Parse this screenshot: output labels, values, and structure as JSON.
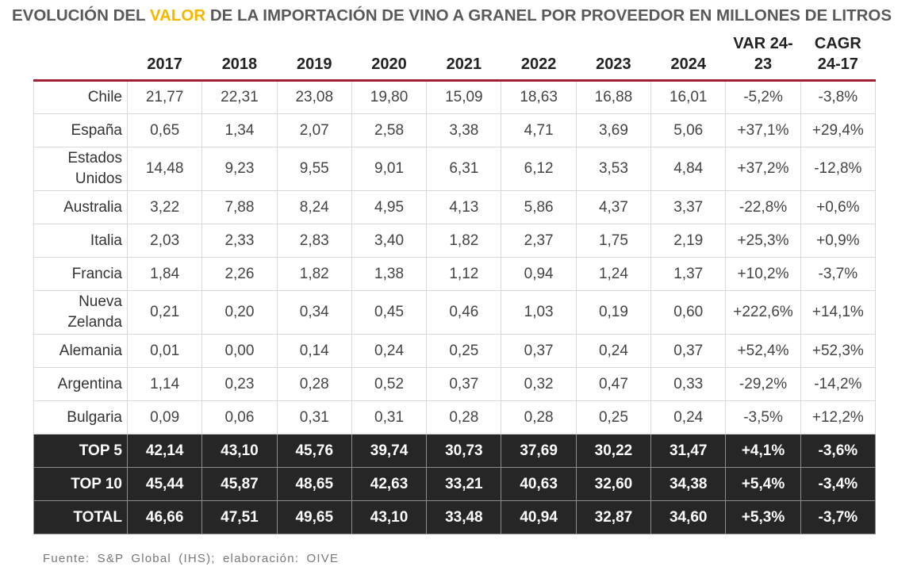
{
  "header": {
    "title_start": "EVOLUCIÓN DEL",
    "title_highlight": "VALOR",
    "title_end": "DE LA IMPORTACIÓN DE VINO A GRANEL POR PROVEEDOR EN MILLONES DE LITROS"
  },
  "table": {
    "columns": [
      "2017",
      "2018",
      "2019",
      "2020",
      "2021",
      "2022",
      "2023",
      "2024",
      "VAR 24-23",
      "CAGR 24-17"
    ],
    "rows": [
      [
        "Chile",
        "21,77",
        "22,31",
        "23,08",
        "19,80",
        "15,09",
        "18,63",
        "16,88",
        "16,01",
        "-5,2%",
        "-3,8%"
      ],
      [
        "España",
        "0,65",
        "1,34",
        "2,07",
        "2,58",
        "3,38",
        "4,71",
        "3,69",
        "5,06",
        "+37,1%",
        "+29,4%"
      ],
      [
        "Estados Unidos",
        "14,48",
        "9,23",
        "9,55",
        "9,01",
        "6,31",
        "6,12",
        "3,53",
        "4,84",
        "+37,2%",
        "-12,8%"
      ],
      [
        "Australia",
        "3,22",
        "7,88",
        "8,24",
        "4,95",
        "4,13",
        "5,86",
        "4,37",
        "3,37",
        "-22,8%",
        "+0,6%"
      ],
      [
        "Italia",
        "2,03",
        "2,33",
        "2,83",
        "3,40",
        "1,82",
        "2,37",
        "1,75",
        "2,19",
        "+25,3%",
        "+0,9%"
      ],
      [
        "Francia",
        "1,84",
        "2,26",
        "1,82",
        "1,38",
        "1,12",
        "0,94",
        "1,24",
        "1,37",
        "+10,2%",
        "-3,7%"
      ],
      [
        "Nueva Zelanda",
        "0,21",
        "0,20",
        "0,34",
        "0,45",
        "0,46",
        "1,03",
        "0,19",
        "0,60",
        "+222,6%",
        "+14,1%"
      ],
      [
        "Alemania",
        "0,01",
        "0,00",
        "0,14",
        "0,24",
        "0,25",
        "0,37",
        "0,24",
        "0,37",
        "+52,4%",
        "+52,3%"
      ],
      [
        "Argentina",
        "1,14",
        "0,23",
        "0,28",
        "0,52",
        "0,37",
        "0,32",
        "0,47",
        "0,33",
        "-29,2%",
        "-14,2%"
      ],
      [
        "Bulgaria",
        "0,09",
        "0,06",
        "0,31",
        "0,31",
        "0,28",
        "0,28",
        "0,25",
        "0,24",
        "-3,5%",
        "+12,2%"
      ]
    ],
    "summary_rows": [
      [
        "TOP 5",
        "42,14",
        "43,10",
        "45,76",
        "39,74",
        "30,73",
        "37,69",
        "30,22",
        "31,47",
        "+4,1%",
        "-3,6%"
      ],
      [
        "TOP 10",
        "45,44",
        "45,87",
        "48,65",
        "42,63",
        "33,21",
        "40,63",
        "32,60",
        "34,38",
        "+5,4%",
        "-3,4%"
      ],
      [
        "TOTAL",
        "46,66",
        "47,51",
        "49,65",
        "43,10",
        "33,48",
        "40,94",
        "32,87",
        "34,60",
        "+5,3%",
        "-3,7%"
      ]
    ]
  },
  "footer": {
    "source": "Fuente: S&P Global (IHS); elaboración: OIVE"
  }
}
